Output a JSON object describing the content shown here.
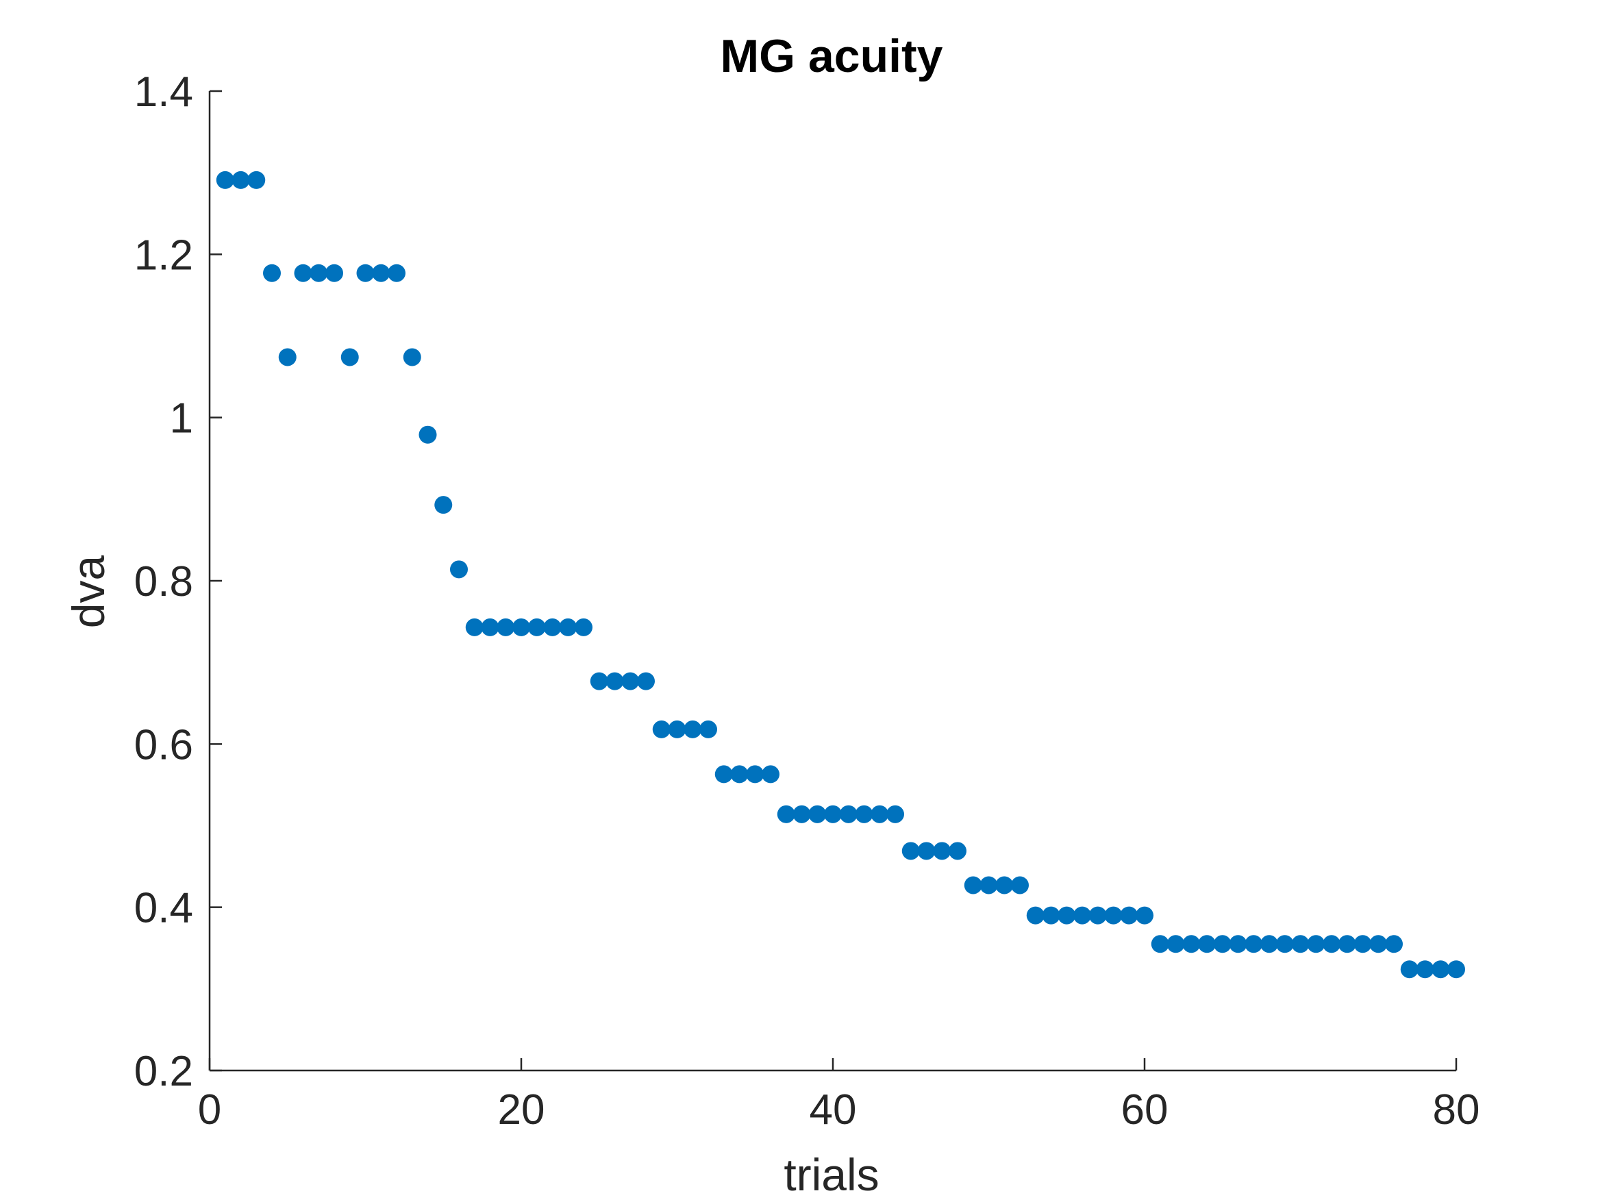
{
  "chart_data": {
    "type": "scatter",
    "title": "MG acuity",
    "xlabel": "trials",
    "ylabel": "dva",
    "xlim": [
      0,
      80
    ],
    "ylim": [
      0.2,
      1.4
    ],
    "xticks": [
      0,
      20,
      40,
      60,
      80
    ],
    "xtick_labels": [
      "0",
      "20",
      "40",
      "60",
      "80"
    ],
    "yticks": [
      0.2,
      0.4,
      0.6,
      0.8,
      1.0,
      1.2,
      1.4
    ],
    "ytick_labels": [
      "0.2",
      "0.4",
      "0.6",
      "0.8",
      "1",
      "1.2",
      "1.4"
    ],
    "grid": false,
    "color": "#0072BD",
    "x": [
      1,
      2,
      3,
      4,
      5,
      6,
      7,
      8,
      9,
      10,
      11,
      12,
      13,
      14,
      15,
      16,
      17,
      18,
      19,
      20,
      21,
      22,
      23,
      24,
      25,
      26,
      27,
      28,
      29,
      30,
      31,
      32,
      33,
      34,
      35,
      36,
      37,
      38,
      39,
      40,
      41,
      42,
      43,
      44,
      45,
      46,
      47,
      48,
      49,
      50,
      51,
      52,
      53,
      54,
      55,
      56,
      57,
      58,
      59,
      60,
      61,
      62,
      63,
      64,
      65,
      66,
      67,
      68,
      69,
      70,
      71,
      72,
      73,
      74,
      75,
      76,
      77,
      78,
      79,
      80
    ],
    "y": [
      1.291,
      1.291,
      1.291,
      1.177,
      1.074,
      1.177,
      1.177,
      1.177,
      1.074,
      1.177,
      1.177,
      1.177,
      1.074,
      0.979,
      0.893,
      0.814,
      0.743,
      0.743,
      0.743,
      0.743,
      0.743,
      0.743,
      0.743,
      0.743,
      0.677,
      0.677,
      0.677,
      0.677,
      0.618,
      0.618,
      0.618,
      0.618,
      0.563,
      0.563,
      0.563,
      0.563,
      0.514,
      0.514,
      0.514,
      0.514,
      0.514,
      0.514,
      0.514,
      0.514,
      0.469,
      0.469,
      0.469,
      0.469,
      0.427,
      0.427,
      0.427,
      0.427,
      0.39,
      0.39,
      0.39,
      0.39,
      0.39,
      0.39,
      0.39,
      0.39,
      0.355,
      0.355,
      0.355,
      0.355,
      0.355,
      0.355,
      0.355,
      0.355,
      0.355,
      0.355,
      0.355,
      0.355,
      0.355,
      0.355,
      0.355,
      0.355,
      0.324,
      0.324,
      0.324,
      0.324
    ]
  }
}
